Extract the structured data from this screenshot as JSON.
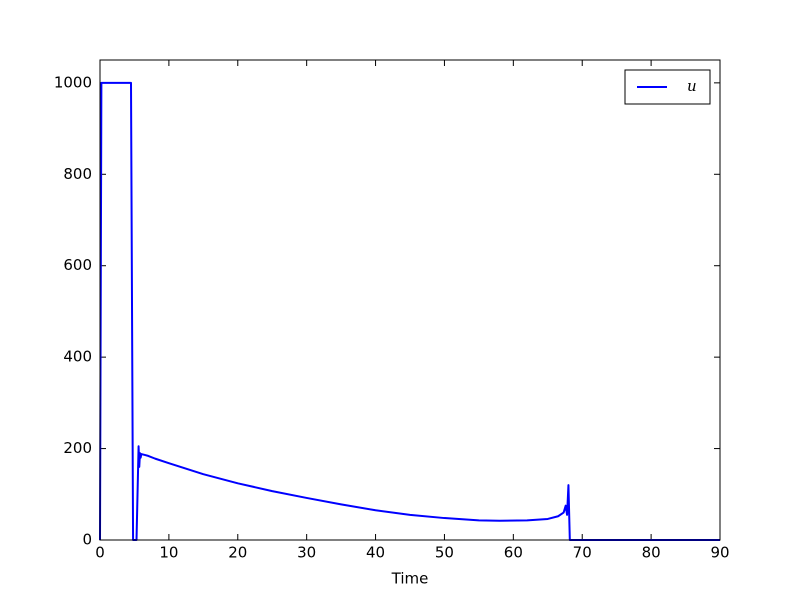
{
  "chart_data": {
    "type": "line",
    "x_label": "Time",
    "x": [
      0,
      0.2,
      4.5,
      4.8,
      5.3,
      5.6,
      5.7,
      5.8,
      5.9,
      6.0,
      6.5,
      7,
      8,
      10,
      15,
      20,
      25,
      30,
      35,
      40,
      45,
      50,
      55,
      58,
      62,
      65,
      66.5,
      67.3,
      67.6,
      67.8,
      68,
      68.2,
      90
    ],
    "series": [
      {
        "name": "u",
        "color": "#0000ff",
        "values": [
          0,
          1000,
          1000,
          0,
          0,
          205,
          160,
          190,
          180,
          188,
          186,
          184,
          178,
          168,
          144,
          124,
          107,
          92,
          78,
          65,
          55,
          48,
          43,
          42,
          43,
          46,
          52,
          60,
          75,
          55,
          120,
          0,
          0
        ]
      }
    ],
    "xlim": [
      0,
      90
    ],
    "xticks": [
      0,
      10,
      20,
      30,
      40,
      50,
      60,
      70,
      80,
      90
    ],
    "ylim": [
      0,
      1050
    ],
    "yticks": [
      0,
      200,
      400,
      600,
      800,
      1000
    ],
    "legend": "upper right"
  }
}
